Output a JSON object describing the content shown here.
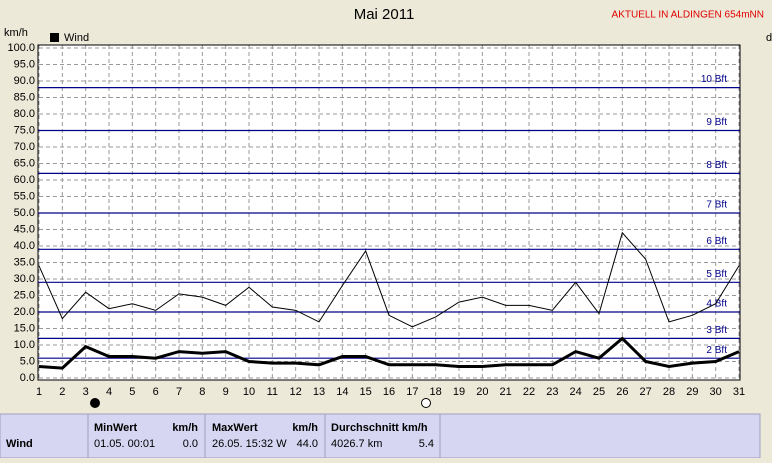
{
  "chart_data": {
    "type": "line",
    "title": "Mai 2011",
    "subtitle": "AKTUELL IN ALDINGEN 654mNN",
    "y_label": "km/h",
    "y2_label": "d",
    "x": [
      1,
      2,
      3,
      4,
      5,
      6,
      7,
      8,
      9,
      10,
      11,
      12,
      13,
      14,
      15,
      16,
      17,
      18,
      19,
      20,
      21,
      22,
      23,
      24,
      25,
      26,
      27,
      28,
      29,
      30,
      31
    ],
    "xlim": [
      1,
      31
    ],
    "xticks": [
      1,
      2,
      3,
      4,
      5,
      6,
      7,
      8,
      9,
      10,
      11,
      12,
      13,
      14,
      15,
      16,
      17,
      18,
      19,
      20,
      21,
      22,
      23,
      24,
      25,
      26,
      27,
      28,
      29,
      30,
      31
    ],
    "ylim": [
      0,
      100
    ],
    "yticks": [
      {
        "value": 0,
        "label": "0.0"
      },
      {
        "value": 5,
        "label": "5.0"
      },
      {
        "value": 10,
        "label": "10.0"
      },
      {
        "value": 15,
        "label": "15.0"
      },
      {
        "value": 20,
        "label": "20.0"
      },
      {
        "value": 25,
        "label": "25.0"
      },
      {
        "value": 30,
        "label": "30.0"
      },
      {
        "value": 35,
        "label": "35.0"
      },
      {
        "value": 40,
        "label": "40.0"
      },
      {
        "value": 45,
        "label": "45.0"
      },
      {
        "value": 50,
        "label": "50.0"
      },
      {
        "value": 55,
        "label": "55.0"
      },
      {
        "value": 60,
        "label": "60.0"
      },
      {
        "value": 65,
        "label": "65.0"
      },
      {
        "value": 70,
        "label": "70.0"
      },
      {
        "value": 75,
        "label": "75.0"
      },
      {
        "value": 80,
        "label": "80.0"
      },
      {
        "value": 85,
        "label": "85.0"
      },
      {
        "value": 90,
        "label": "90.0"
      },
      {
        "value": 95,
        "label": "95.0"
      },
      {
        "value": 100,
        "label": "100.0"
      }
    ],
    "grid": true,
    "bft_lines": [
      {
        "value": 6,
        "label": "2 Bft"
      },
      {
        "value": 12,
        "label": "3 Bft"
      },
      {
        "value": 20,
        "label": "4 Bft"
      },
      {
        "value": 29,
        "label": "5 Bft"
      },
      {
        "value": 39,
        "label": "6 Bft"
      },
      {
        "value": 50,
        "label": "7 Bft"
      },
      {
        "value": 62,
        "label": "8 Bft"
      },
      {
        "value": 75,
        "label": "9 Bft"
      },
      {
        "value": 88,
        "label": "10 Bft"
      }
    ],
    "series": [
      {
        "color": "#000000",
        "width": 1,
        "values": [
          34,
          18,
          26,
          21,
          22.5,
          20.5,
          25.5,
          24.5,
          22,
          27.5,
          21.5,
          20.5,
          17,
          28,
          38.5,
          19,
          15.5,
          18.5,
          23,
          24.5,
          22,
          22,
          20.5,
          29,
          19.5,
          44,
          36,
          17,
          19,
          22.5,
          34
        ]
      },
      {
        "name": "Wind",
        "color": "#000000",
        "width": 3,
        "values": [
          3.5,
          3,
          9.5,
          6.5,
          6.5,
          6,
          8,
          7.5,
          8,
          5,
          4.5,
          4.5,
          4,
          6.5,
          6.5,
          4,
          4,
          4,
          3.5,
          3.5,
          4,
          4,
          4,
          8,
          6,
          12,
          5,
          3.5,
          4.5,
          5,
          8
        ]
      }
    ]
  },
  "stats": {
    "row_label": "Wind",
    "min": {
      "header": "MinWert",
      "unit": "km/h",
      "date": "01.05.  00:01",
      "value": "0.0"
    },
    "max": {
      "header": "MaxWert",
      "unit": "km/h",
      "date": "26.05.  15:32  W",
      "value": "44.0"
    },
    "avg": {
      "header": "Durchschnitt km/h",
      "date": "4026.7 km",
      "value": "5.4"
    }
  }
}
